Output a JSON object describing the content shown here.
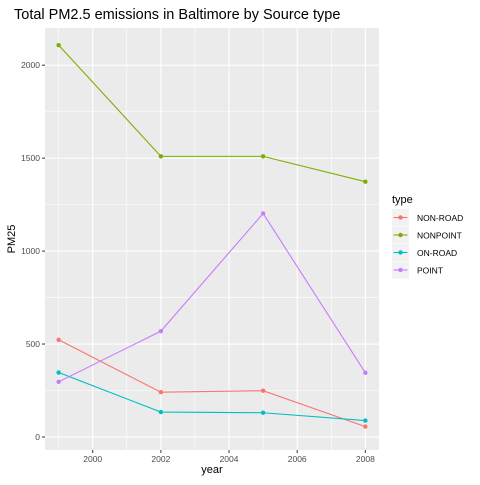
{
  "chart_data": {
    "type": "line",
    "title": "Total PM2.5 emissions in Baltimore by Source type",
    "xlabel": "year",
    "ylabel": "PM25",
    "x": [
      1999,
      2002,
      2005,
      2008
    ],
    "xlim": [
      1998.6,
      2008.4
    ],
    "ylim": [
      -70,
      2200
    ],
    "x_ticks": [
      2000,
      2002,
      2004,
      2006,
      2008
    ],
    "x_tick_labels": [
      "2000",
      "2002",
      "2004",
      "2006",
      "2008"
    ],
    "y_ticks": [
      0,
      500,
      1000,
      1500,
      2000
    ],
    "y_tick_labels": [
      "0",
      "500",
      "1000",
      "1500",
      "2000"
    ],
    "grid": true,
    "legend": {
      "title": "type",
      "position": "right"
    },
    "series": [
      {
        "name": "NON-ROAD",
        "color": "#F8766D",
        "values": [
          522.94,
          240.85,
          248.93,
          55.82
        ]
      },
      {
        "name": "NONPOINT",
        "color": "#7CAE00",
        "values": [
          2107.63,
          1509.5,
          1509.5,
          1373.21
        ]
      },
      {
        "name": "ON-ROAD",
        "color": "#00BFC4",
        "values": [
          346.82,
          134.31,
          130.43,
          88.28
        ]
      },
      {
        "name": "POINT",
        "color": "#C77CFF",
        "values": [
          296.8,
          569.26,
          1202.49,
          344.98
        ]
      }
    ]
  }
}
